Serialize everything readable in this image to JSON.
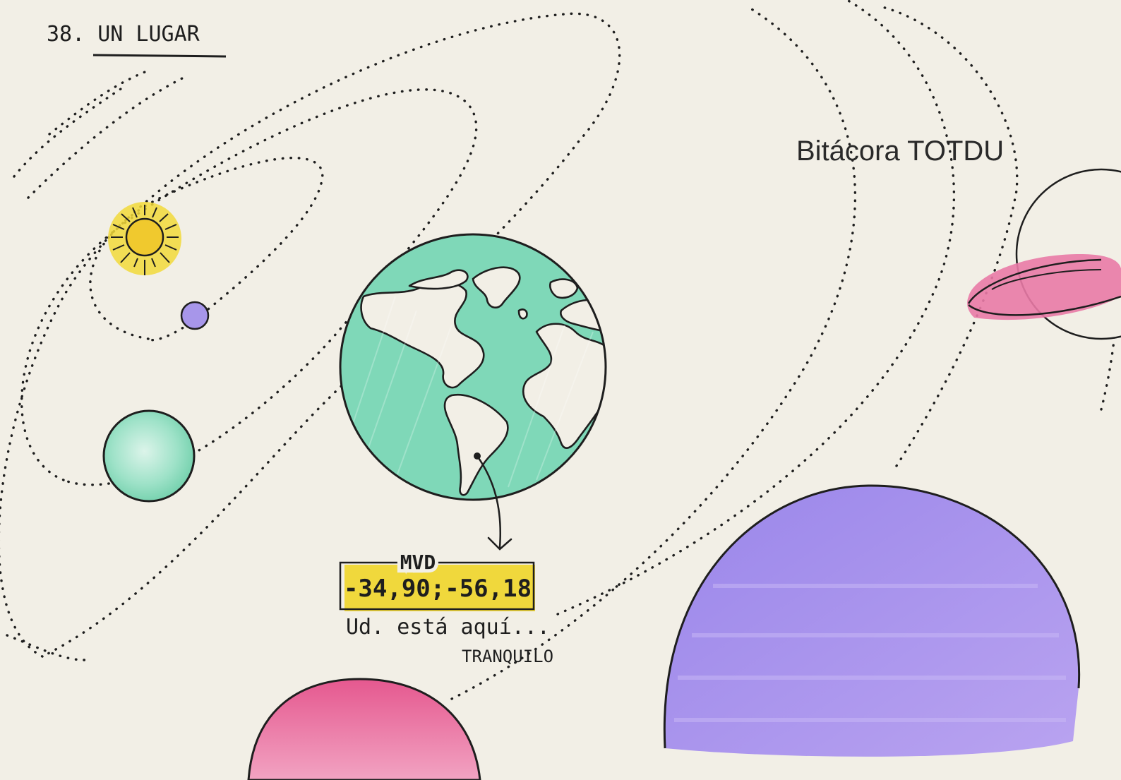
{
  "page_title": "38. UN LUGAR",
  "watermark": "Bitácora TOTDU",
  "label_box": {
    "city_code": "MVD",
    "coordinates": "-34,90;-56,18"
  },
  "caption": {
    "line1": "Ud. está aquí...",
    "line2": "TRANQUILO"
  },
  "colors": {
    "paper": "#f2efe6",
    "ink": "#1e1e1e",
    "earth_green": "#7fd8b8",
    "sun_yellow": "#f2d93a",
    "lavender": "#a98fe6",
    "pink": "#e97aa6",
    "highlight": "#f0d83c"
  },
  "icons": [
    "sun-icon",
    "earth-globe",
    "location-pin-icon",
    "arrow-icon"
  ]
}
